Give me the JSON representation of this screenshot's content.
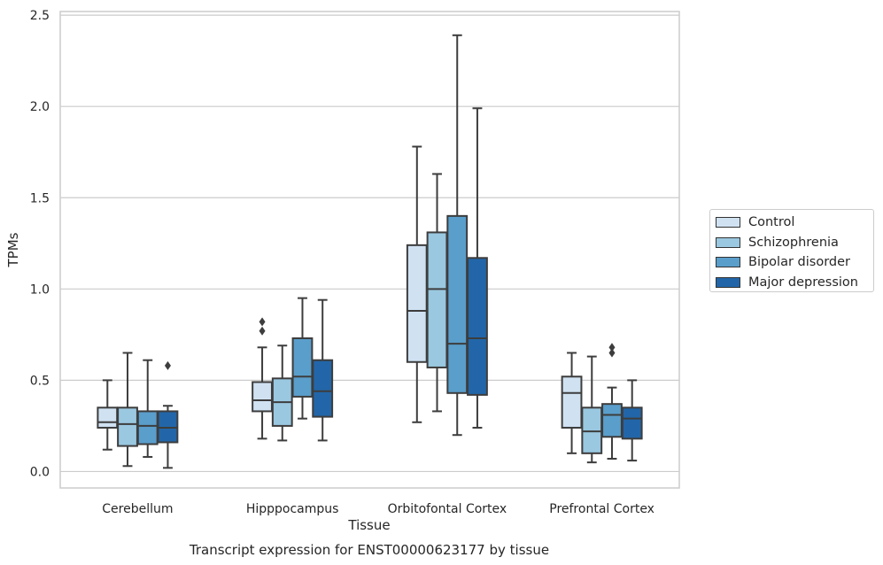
{
  "chart_data": {
    "type": "box",
    "title": "Transcript expression for ENST00000623177 by tissue",
    "xlabel": "Tissue",
    "ylabel": "TPMs",
    "ylim": [
      -0.09,
      2.52
    ],
    "yticks": [
      0.0,
      0.5,
      1.0,
      1.5,
      2.0,
      2.5
    ],
    "ytick_labels": [
      "0.0",
      "0.5",
      "1.0",
      "1.5",
      "2.0",
      "2.5"
    ],
    "grid": "horizontal",
    "legend_position": "right",
    "categories": [
      "Cerebellum",
      "Hipppocampus",
      "Orbitofontal Cortex",
      "Prefrontal Cortex"
    ],
    "series": [
      {
        "name": "Control",
        "color": "#d0e2f2",
        "boxes": [
          {
            "whislo": 0.12,
            "q1": 0.24,
            "med": 0.27,
            "q3": 0.35,
            "whishi": 0.5,
            "fliers": []
          },
          {
            "whislo": 0.18,
            "q1": 0.33,
            "med": 0.39,
            "q3": 0.49,
            "whishi": 0.68,
            "fliers": [
              0.77,
              0.82
            ]
          },
          {
            "whislo": 0.27,
            "q1": 0.6,
            "med": 0.88,
            "q3": 1.24,
            "whishi": 1.78,
            "fliers": []
          },
          {
            "whislo": 0.1,
            "q1": 0.24,
            "med": 0.43,
            "q3": 0.52,
            "whishi": 0.65,
            "fliers": []
          }
        ]
      },
      {
        "name": "Schizophrenia",
        "color": "#9ac8e0",
        "boxes": [
          {
            "whislo": 0.03,
            "q1": 0.14,
            "med": 0.26,
            "q3": 0.35,
            "whishi": 0.65,
            "fliers": []
          },
          {
            "whislo": 0.17,
            "q1": 0.25,
            "med": 0.38,
            "q3": 0.51,
            "whishi": 0.69,
            "fliers": []
          },
          {
            "whislo": 0.33,
            "q1": 0.57,
            "med": 1.0,
            "q3": 1.31,
            "whishi": 1.63,
            "fliers": []
          },
          {
            "whislo": 0.05,
            "q1": 0.1,
            "med": 0.22,
            "q3": 0.35,
            "whishi": 0.63,
            "fliers": []
          }
        ]
      },
      {
        "name": "Bipolar disorder",
        "color": "#5a9ecb",
        "boxes": [
          {
            "whislo": 0.08,
            "q1": 0.15,
            "med": 0.25,
            "q3": 0.33,
            "whishi": 0.61,
            "fliers": []
          },
          {
            "whislo": 0.29,
            "q1": 0.41,
            "med": 0.52,
            "q3": 0.73,
            "whishi": 0.95,
            "fliers": []
          },
          {
            "whislo": 0.2,
            "q1": 0.43,
            "med": 0.7,
            "q3": 1.4,
            "whishi": 2.39,
            "fliers": []
          },
          {
            "whislo": 0.07,
            "q1": 0.19,
            "med": 0.31,
            "q3": 0.37,
            "whishi": 0.46,
            "fliers": [
              0.65,
              0.68
            ]
          }
        ]
      },
      {
        "name": "Major depression",
        "color": "#2266a9",
        "boxes": [
          {
            "whislo": 0.02,
            "q1": 0.16,
            "med": 0.24,
            "q3": 0.33,
            "whishi": 0.36,
            "fliers": [
              0.58
            ]
          },
          {
            "whislo": 0.17,
            "q1": 0.3,
            "med": 0.44,
            "q3": 0.61,
            "whishi": 0.94,
            "fliers": []
          },
          {
            "whislo": 0.24,
            "q1": 0.42,
            "med": 0.73,
            "q3": 1.17,
            "whishi": 1.99,
            "fliers": []
          },
          {
            "whislo": 0.06,
            "q1": 0.18,
            "med": 0.29,
            "q3": 0.35,
            "whishi": 0.5,
            "fliers": []
          }
        ]
      }
    ]
  }
}
